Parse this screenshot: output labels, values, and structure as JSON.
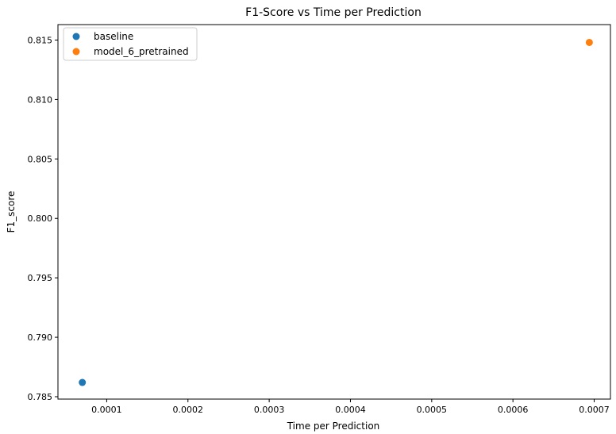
{
  "chart_data": {
    "type": "scatter",
    "title": "F1-Score vs Time per Prediction",
    "xlabel": "Time per Prediction",
    "ylabel": "F1_score",
    "xlim": [
      4e-05,
      0.00072
    ],
    "ylim": [
      0.7848,
      0.8163
    ],
    "x_ticks": [
      0.0001,
      0.0002,
      0.0003,
      0.0004,
      0.0005,
      0.0006,
      0.0007
    ],
    "x_tick_labels": [
      "0.0001",
      "0.0002",
      "0.0003",
      "0.0004",
      "0.0005",
      "0.0006",
      "0.0007"
    ],
    "y_ticks": [
      0.785,
      0.79,
      0.795,
      0.8,
      0.805,
      0.81,
      0.815
    ],
    "y_tick_labels": [
      "0.785",
      "0.790",
      "0.795",
      "0.800",
      "0.805",
      "0.810",
      "0.815"
    ],
    "grid": false,
    "legend_position": "upper-left",
    "series": [
      {
        "name": "baseline",
        "color": "#1f77b4",
        "points": [
          {
            "x": 7e-05,
            "y": 0.7862
          }
        ]
      },
      {
        "name": "model_6_pretrained",
        "color": "#ff7f0e",
        "points": [
          {
            "x": 0.000694,
            "y": 0.8148
          }
        ]
      }
    ]
  }
}
